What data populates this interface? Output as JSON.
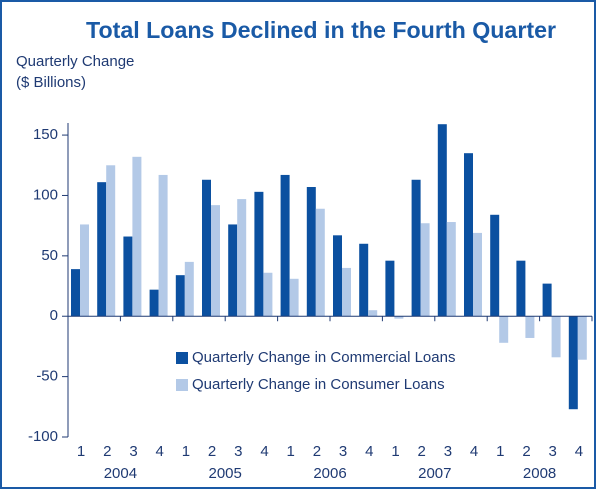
{
  "chart_data": {
    "type": "bar",
    "title": "Total Loans Declined in the Fourth Quarter",
    "ylabel": [
      "Quarterly Change",
      "($ Billions)"
    ],
    "categories": [
      "1",
      "2",
      "3",
      "4",
      "1",
      "2",
      "3",
      "4",
      "1",
      "2",
      "3",
      "4",
      "1",
      "2",
      "3",
      "4",
      "1",
      "2",
      "3",
      "4"
    ],
    "years": [
      "2004",
      "2005",
      "2006",
      "2007",
      "2008"
    ],
    "series": [
      {
        "name": "Quarterly Change in Commercial Loans",
        "color": "#0b50a0",
        "values": [
          39,
          111,
          66,
          22,
          34,
          113,
          76,
          103,
          117,
          107,
          67,
          60,
          46,
          113,
          159,
          135,
          84,
          46,
          27,
          -77
        ]
      },
      {
        "name": "Quarterly Change in Consumer Loans",
        "color": "#b3c9e7",
        "values": [
          76,
          125,
          132,
          117,
          45,
          92,
          97,
          36,
          31,
          89,
          40,
          5,
          -2,
          77,
          78,
          69,
          -22,
          -18,
          -34,
          -36
        ]
      }
    ],
    "ylim": [
      -100,
      160
    ],
    "yticks": [
      150,
      100,
      50,
      0,
      -50,
      -100
    ]
  }
}
